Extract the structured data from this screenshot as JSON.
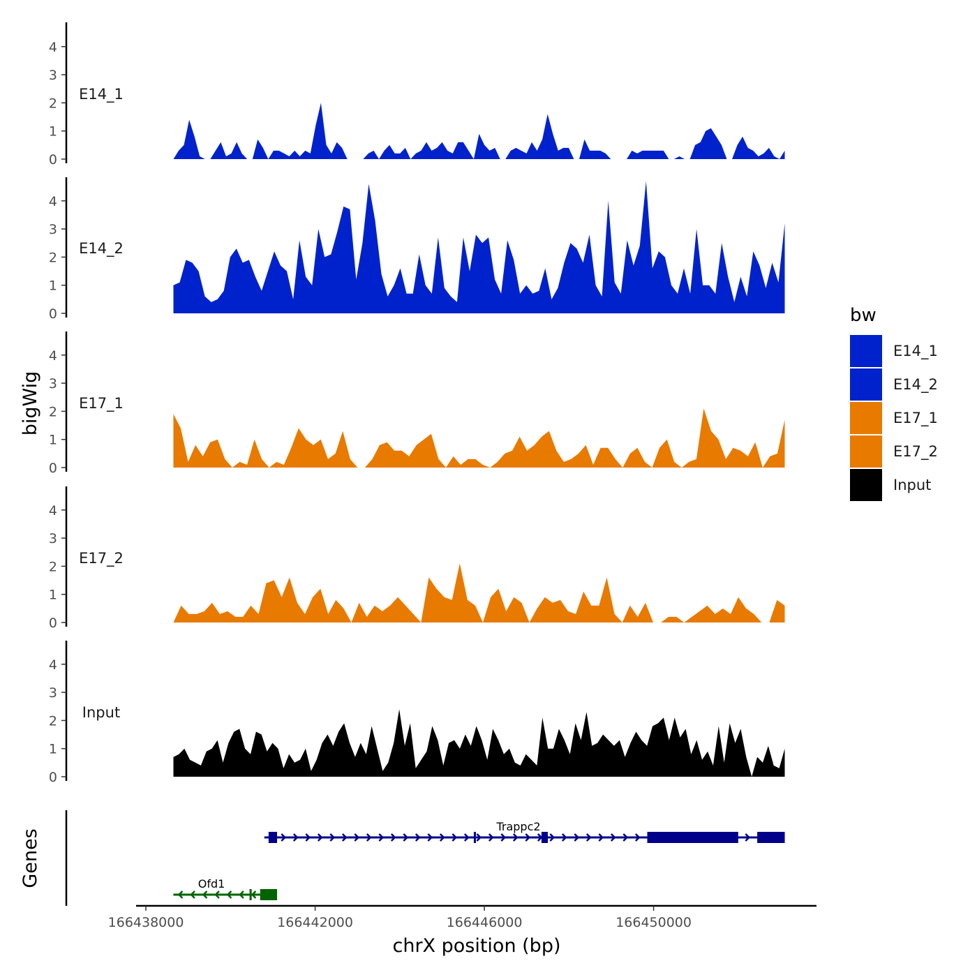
{
  "chart_data": {
    "type": "area",
    "title": "",
    "xlabel": "chrX position (bp)",
    "ylabel": "bigWig",
    "genes_label": "Genes",
    "xlim": [
      166437900,
      166453850
    ],
    "xticks": [
      166438000,
      166442000,
      166446000,
      166450000
    ],
    "xtick_labels": [
      "166438000",
      "166442000",
      "166446000",
      "166450000"
    ],
    "ylim": [
      0,
      5
    ],
    "yticks": [
      0,
      1,
      2,
      3,
      4
    ],
    "ytick_labels": [
      "0",
      "1",
      "2",
      "3",
      "4"
    ],
    "x_start": 166438650,
    "x_end": 166453100,
    "legend": {
      "title": "bw",
      "position": "right",
      "entries": [
        {
          "label": "E14_1",
          "color": "#0022CC"
        },
        {
          "label": "E14_2",
          "color": "#0022CC"
        },
        {
          "label": "E17_1",
          "color": "#E87A00"
        },
        {
          "label": "E17_2",
          "color": "#E87A00"
        },
        {
          "label": "Input",
          "color": "#000000"
        }
      ]
    },
    "series": [
      {
        "name": "E14_1",
        "color": "#0022CC",
        "values": [
          0,
          0.3,
          0.5,
          1.4,
          0.8,
          0.1,
          0,
          0,
          0.3,
          0.6,
          0.1,
          0.2,
          0.6,
          0.2,
          0,
          0,
          0.7,
          0.4,
          0,
          0.3,
          0.3,
          0.2,
          0.1,
          0.3,
          0.1,
          0.3,
          0.2,
          1.2,
          2.0,
          0.5,
          0.2,
          0.6,
          0.4,
          0,
          0,
          0,
          0,
          0.2,
          0.3,
          0,
          0.3,
          0.5,
          0.2,
          0.2,
          0.4,
          0,
          0.2,
          0.3,
          0.6,
          0.3,
          0.4,
          0.6,
          0.3,
          0.2,
          0.6,
          0.6,
          0.3,
          0,
          0.9,
          0.5,
          0.3,
          0.4,
          0,
          0,
          0.3,
          0.4,
          0.3,
          0.2,
          0.6,
          0.3,
          0.7,
          1.6,
          0.9,
          0.3,
          0.4,
          0.4,
          0,
          0,
          0.7,
          0.3,
          0.3,
          0.3,
          0.2,
          0,
          0,
          0,
          0,
          0.3,
          0.2,
          0.3,
          0.3,
          0.3,
          0.3,
          0.3,
          0,
          0,
          0.1,
          0,
          0,
          0.5,
          0.6,
          1.0,
          1.1,
          0.8,
          0.5,
          0,
          0,
          0.5,
          0.8,
          0.4,
          0.3,
          0.1,
          0.2,
          0.4,
          0.1,
          0,
          0.3
        ]
      },
      {
        "name": "E14_2",
        "color": "#0022CC",
        "values": [
          1.0,
          1.1,
          1.9,
          1.8,
          1.5,
          0.6,
          0.4,
          0.5,
          0.8,
          2.0,
          2.3,
          1.8,
          1.9,
          1.3,
          0.8,
          1.5,
          2.2,
          1.7,
          1.5,
          0.5,
          2.6,
          1.3,
          1.0,
          3.0,
          2.0,
          2.1,
          2.9,
          3.8,
          3.7,
          1.2,
          2.5,
          4.6,
          3.3,
          1.4,
          0.6,
          1.0,
          1.6,
          0.7,
          0.7,
          2.1,
          1.0,
          0.7,
          2.7,
          0.9,
          0.6,
          0.4,
          2.7,
          1.5,
          2.8,
          2.5,
          2.7,
          1.2,
          0.7,
          2.6,
          1.9,
          0.7,
          1.0,
          0.7,
          0.8,
          1.6,
          0.5,
          0.9,
          1.8,
          2.5,
          2.3,
          1.8,
          2.8,
          1.0,
          0.6,
          4.0,
          1.1,
          0.7,
          2.6,
          1.7,
          2.4,
          4.7,
          1.6,
          2.2,
          2.0,
          1.0,
          0.7,
          1.6,
          0.7,
          3.0,
          1.0,
          1.0,
          0.7,
          2.5,
          1.3,
          0.4,
          1.3,
          0.6,
          2.2,
          1.7,
          0.9,
          1.8,
          1.1,
          3.2
        ]
      },
      {
        "name": "E17_1",
        "color": "#E87A00",
        "values": [
          1.9,
          1.4,
          0.2,
          0.8,
          0.4,
          0.9,
          1.0,
          0.3,
          0,
          0.2,
          0.1,
          1.0,
          0.3,
          0,
          0.2,
          0.1,
          0.7,
          1.4,
          1.0,
          0.8,
          1.0,
          0.3,
          0.5,
          1.3,
          0.3,
          0,
          0,
          0.3,
          0.8,
          0.9,
          0.6,
          0.6,
          0.4,
          0.8,
          1.0,
          1.2,
          0.3,
          0,
          0.4,
          0.1,
          0.3,
          0.3,
          0.1,
          0,
          0.2,
          0.5,
          0.6,
          1.1,
          0.6,
          0.8,
          1.1,
          1.3,
          0.6,
          0.2,
          0.3,
          0.5,
          0.8,
          0.1,
          0.7,
          0.7,
          0.3,
          0,
          0.5,
          0.7,
          0.2,
          0,
          0.7,
          1.0,
          0.2,
          0,
          0.2,
          0.3,
          2.1,
          1.3,
          1.0,
          0.3,
          0.7,
          0.6,
          0.4,
          0.9,
          0,
          0.4,
          0.5,
          1.7
        ]
      },
      {
        "name": "E17_2",
        "color": "#E87A00",
        "values": [
          0,
          0.6,
          0.3,
          0.3,
          0.4,
          0.7,
          0.3,
          0.4,
          0.2,
          0.2,
          0.6,
          0.3,
          1.4,
          1.5,
          0.9,
          1.6,
          0.7,
          0.3,
          0.9,
          1.2,
          0.3,
          0.8,
          0.5,
          0,
          0.7,
          0.2,
          0.6,
          0.4,
          0.6,
          0.9,
          0.6,
          0.3,
          0,
          1.6,
          1.2,
          0.9,
          0.8,
          2.1,
          0.8,
          0.6,
          0,
          0.9,
          1.2,
          0.4,
          0.9,
          0.7,
          0,
          0.5,
          0.9,
          0.7,
          0.8,
          0.4,
          0.3,
          1.1,
          0.6,
          0.6,
          1.6,
          0.3,
          0,
          0.6,
          0.2,
          0.7,
          0,
          0,
          0.2,
          0.2,
          0,
          0.2,
          0.4,
          0.6,
          0.3,
          0.5,
          0.3,
          0.9,
          0.5,
          0.3,
          0,
          0,
          0.8,
          0.6
        ]
      },
      {
        "name": "Input",
        "color": "#000000",
        "values": [
          0.7,
          0.8,
          1.0,
          0.6,
          0.5,
          0.4,
          0.9,
          1.0,
          1.3,
          0.5,
          1.2,
          1.6,
          1.7,
          1.0,
          0.8,
          1.6,
          1.5,
          0.9,
          1.2,
          1.0,
          0.3,
          0.8,
          0.5,
          0.6,
          1.0,
          0.2,
          0.6,
          1.2,
          1.5,
          1.1,
          1.6,
          1.9,
          1.2,
          0.7,
          1.2,
          0.8,
          1.8,
          1.0,
          0.2,
          0.5,
          1.2,
          2.4,
          1.1,
          1.9,
          0.3,
          0.6,
          0.9,
          1.8,
          1.3,
          0.4,
          1.2,
          1.3,
          1.0,
          1.5,
          1.1,
          1.8,
          1.3,
          0.6,
          1.7,
          1.3,
          0.8,
          1.0,
          0.5,
          0.4,
          0.8,
          0.6,
          0.4,
          2.1,
          1.0,
          1.0,
          1.7,
          1.3,
          0.8,
          1.9,
          1.3,
          2.3,
          1.1,
          1.2,
          1.5,
          1.3,
          1.1,
          1.3,
          0.7,
          1.2,
          1.6,
          1.3,
          1.1,
          1.8,
          1.9,
          2.1,
          1.3,
          2.1,
          1.4,
          1.7,
          0.8,
          1.3,
          0.6,
          0.9,
          0.4,
          1.8,
          0.5,
          1.9,
          1.2,
          1.7,
          0.7,
          0,
          0.7,
          0.5,
          1.1,
          0.4,
          0.3,
          1.0
        ]
      }
    ],
    "genes": [
      {
        "name": "Trappc2",
        "color": "#00008B",
        "strand": "+",
        "start": 166440800,
        "end": 166453100,
        "exons": [
          [
            166440900,
            166441100
          ],
          [
            166445750,
            166445800
          ],
          [
            166447350,
            166447500
          ],
          [
            166449850,
            166452000
          ],
          [
            166452450,
            166453100
          ]
        ]
      },
      {
        "name": "Ofd1",
        "color": "#006400",
        "strand": "-",
        "start": 166438650,
        "end": 166441100,
        "exons": [
          [
            166440450,
            166440500
          ],
          [
            166440700,
            166441100
          ]
        ]
      }
    ]
  }
}
